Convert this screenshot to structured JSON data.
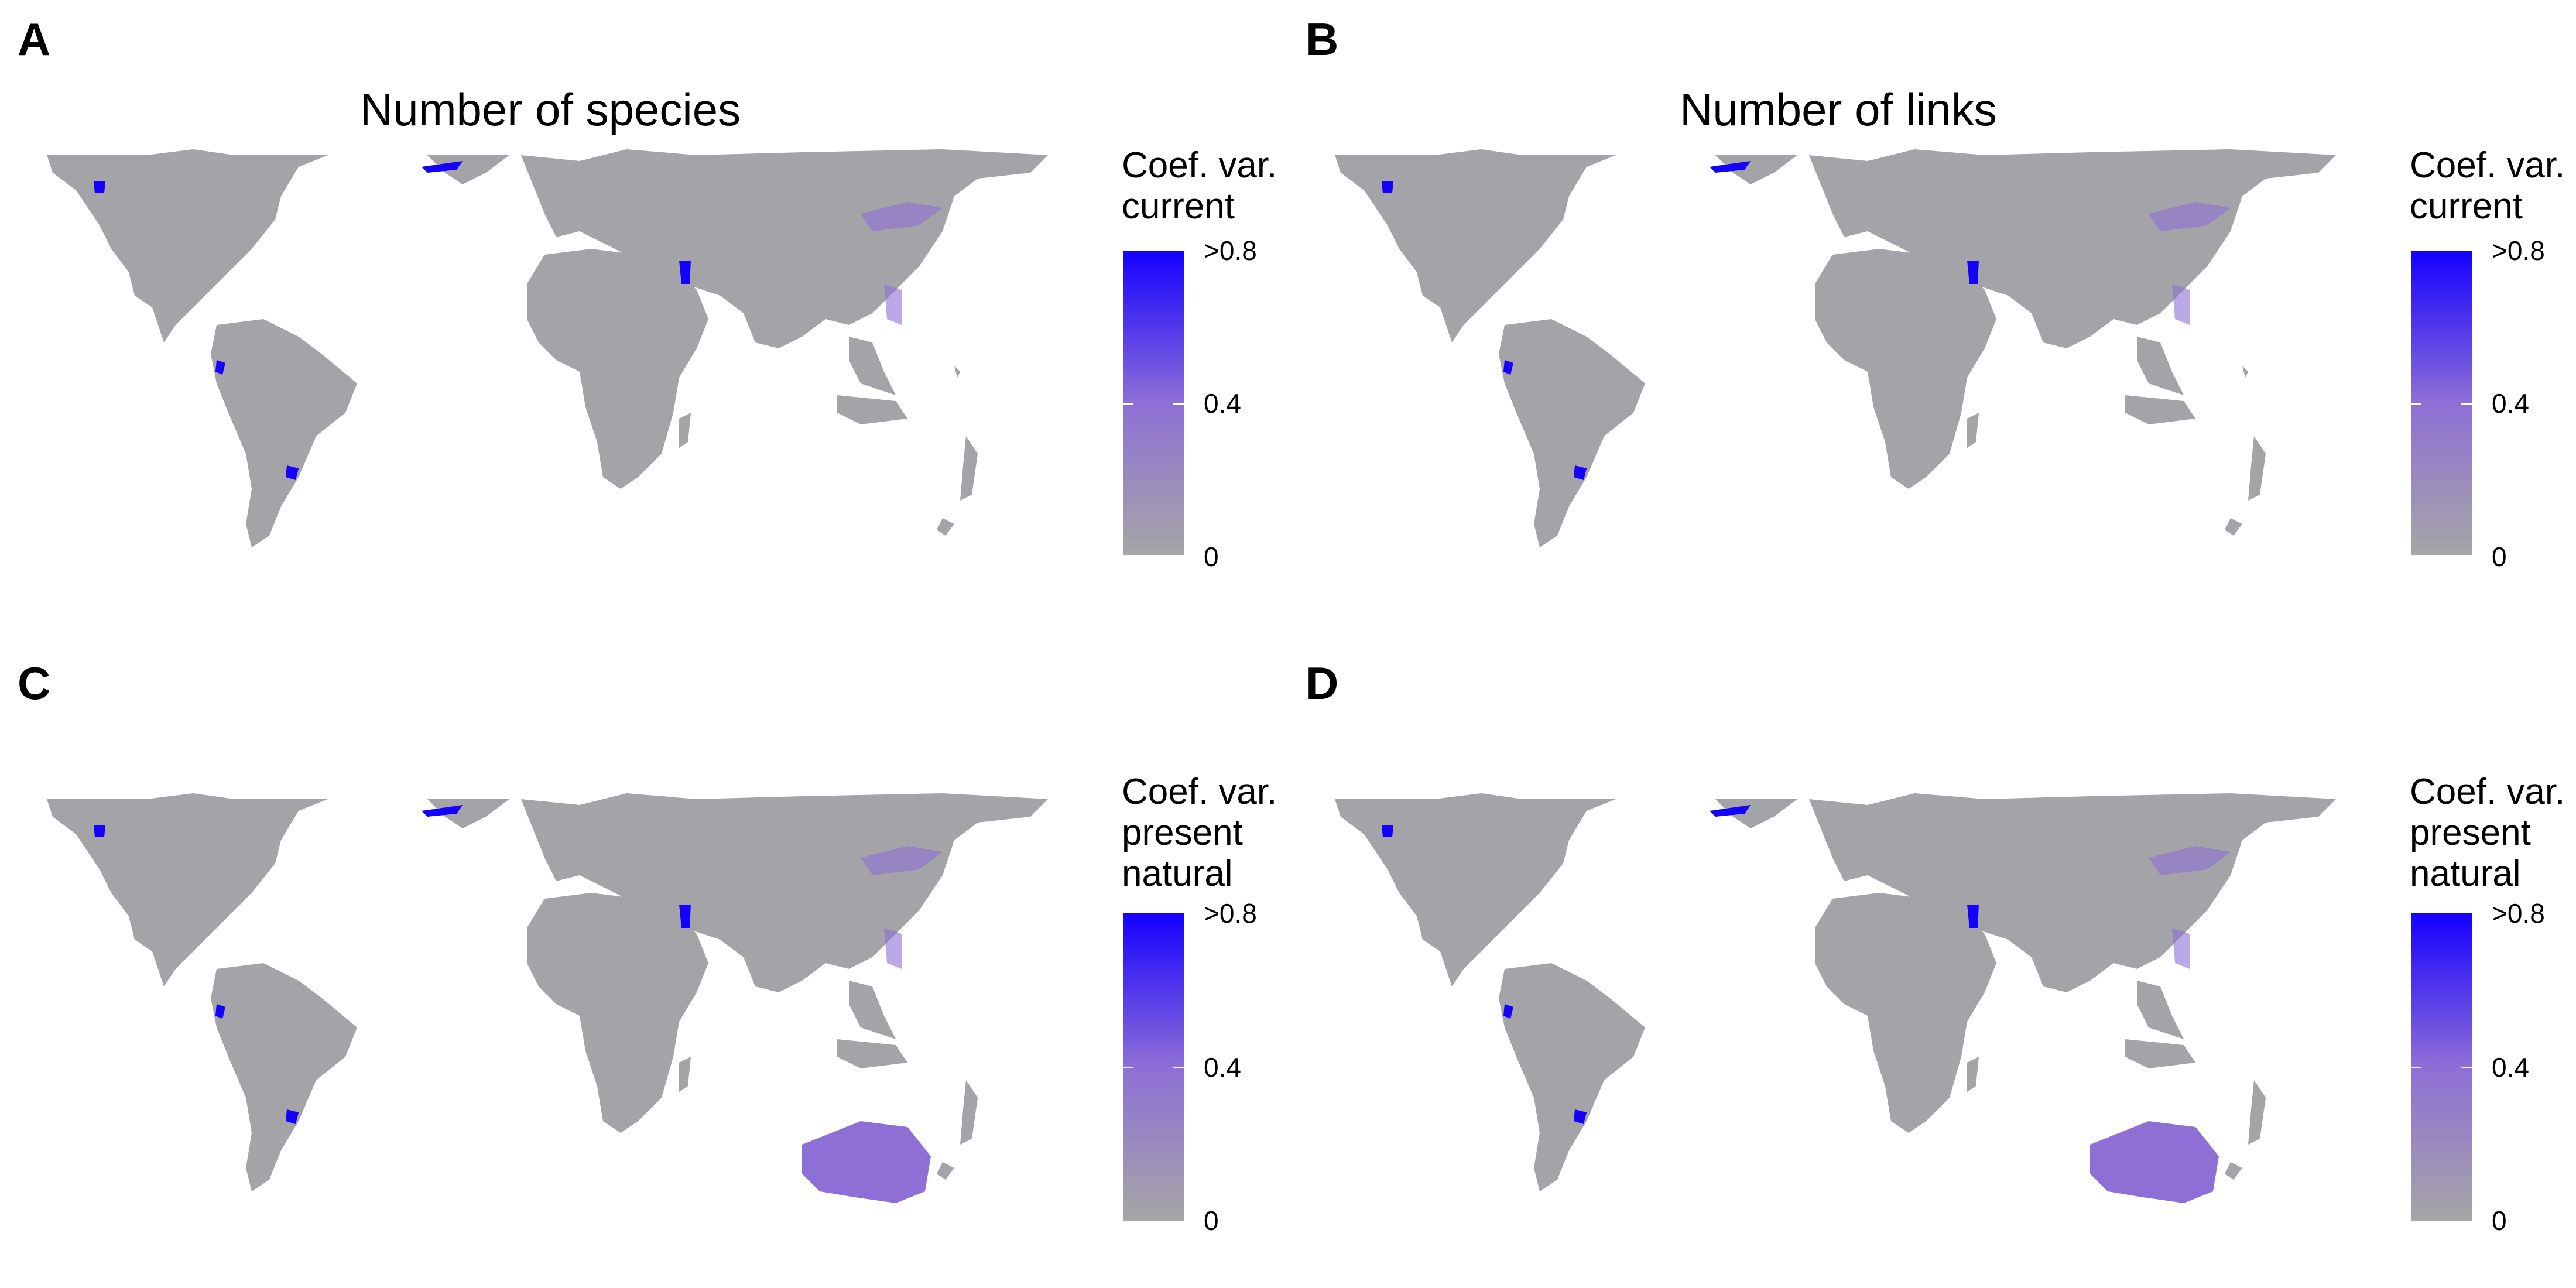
{
  "colors": {
    "low": "#A6A6A6",
    "mid": "#8E6FD6",
    "high": "#1400FF",
    "land": "#A3A3A8"
  },
  "panels": [
    {
      "letter": "A",
      "title": "Number of species",
      "legend_title": [
        "Coef. var.",
        "current"
      ],
      "ticks": [
        ">0.8",
        "0.4",
        "0"
      ],
      "australia": false
    },
    {
      "letter": "B",
      "title": "Number of links",
      "legend_title": [
        "Coef. var.",
        "current"
      ],
      "ticks": [
        ">0.8",
        "0.4",
        "0"
      ],
      "australia": false
    },
    {
      "letter": "C",
      "title": "",
      "legend_title": [
        "Coef. var.",
        "present",
        "natural"
      ],
      "ticks": [
        ">0.8",
        "0.4",
        "0"
      ],
      "australia": true
    },
    {
      "letter": "D",
      "title": "",
      "legend_title": [
        "Coef. var.",
        "present",
        "natural"
      ],
      "ticks": [
        ">0.8",
        "0.4",
        "0"
      ],
      "australia": true
    }
  ]
}
